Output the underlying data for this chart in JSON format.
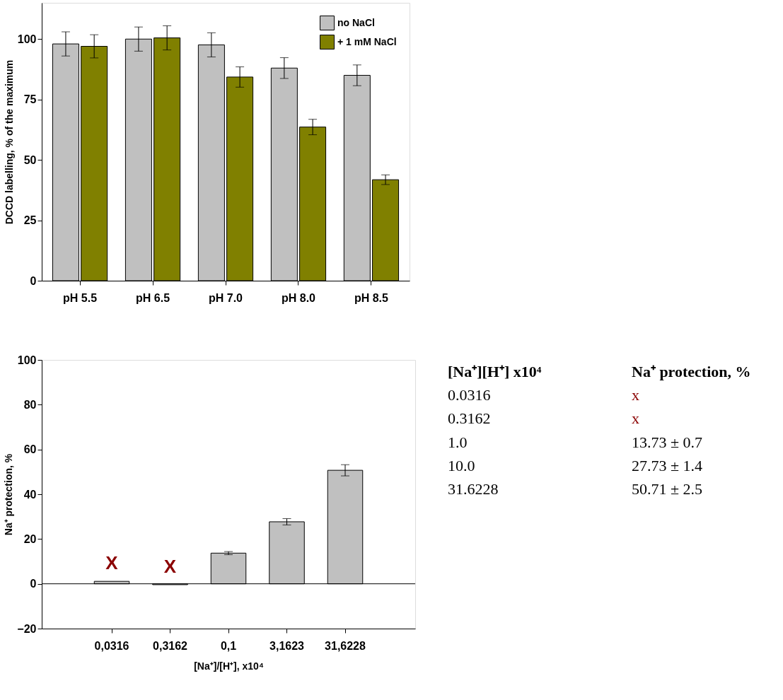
{
  "chart_data": [
    {
      "type": "bar",
      "ylabel": "DCCD labelling, % of the maximum",
      "categories": [
        "pH 5.5",
        "pH 6.5",
        "pH 7.0",
        "pH 8.0",
        "pH 8.5"
      ],
      "series": [
        {
          "name": "no NaCl",
          "color": "#c0c0c0",
          "values": [
            98,
            100,
            97.6,
            88,
            85
          ],
          "errors": [
            5,
            5,
            5,
            4.3,
            4.3
          ]
        },
        {
          "name": "+ 1 mM NaCl",
          "color": "#808000",
          "values": [
            97,
            100.5,
            84.3,
            63.6,
            41.8
          ],
          "errors": [
            4.8,
            5,
            4.2,
            3.2,
            2
          ]
        }
      ],
      "ylim": [
        0,
        115
      ],
      "yticks": [
        0,
        25,
        50,
        75,
        100
      ],
      "grid": false,
      "legend": "top right"
    },
    {
      "type": "bar",
      "ylabel": "Na⁺ protection, %",
      "xlabel": "[Na⁺]/[H⁺], x10⁴",
      "categories": [
        "0,0316",
        "0,3162",
        "0,1",
        "3,1623",
        "31,6228"
      ],
      "series": [
        {
          "color": "#c0c0c0",
          "values": [
            1.1,
            -0.4,
            13.7,
            27.7,
            50.7
          ],
          "errors": [
            null,
            null,
            0.7,
            1.4,
            2.5
          ],
          "value_labels": [
            "X",
            "X",
            null,
            null,
            null
          ]
        }
      ],
      "ylim": [
        -20,
        100
      ],
      "yticks": [
        -20,
        0,
        20,
        40,
        60,
        80,
        100
      ],
      "grid": false,
      "legend": false,
      "ref_lines": [
        {
          "axis": "y",
          "value": 0,
          "color": "#000000"
        }
      ]
    },
    {
      "type": "other",
      "annotations": [
        "[Na⁺][H⁺] x10⁴",
        "Na⁺ protection, %",
        "0.0316",
        "x",
        "0.3162",
        "x",
        "1.0",
        "13.73 ± 0.7",
        "10.0",
        "27.73 ± 1.4",
        "31.6228",
        "50.71 ± 2.5"
      ],
      "colors": [
        "#000000",
        "#000000",
        "#000000",
        "#8b0000",
        "#000000",
        "#8b0000",
        "#000000",
        "#000000",
        "#000000",
        "#000000",
        "#000000",
        "#000000"
      ]
    }
  ]
}
